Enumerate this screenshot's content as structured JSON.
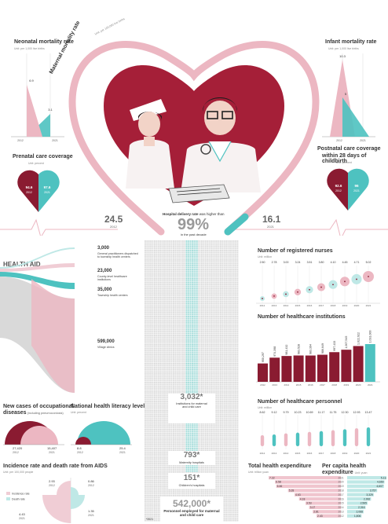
{
  "colors": {
    "maroon": "#8a1b31",
    "pink": "#ecb7c2",
    "teal": "#4ec2c0",
    "light_teal": "#bfe8e6",
    "grey": "#d9d9d9"
  },
  "neonatal": {
    "title": "Neonatal mortality rate",
    "unit": "Unit: per 1,000 live births",
    "v2012": "6.9",
    "v2021": "3.1",
    "x1": "2012",
    "x2": "2021"
  },
  "infant": {
    "title": "Infant mortality rate",
    "unit": "Unit: per 1,000 live births",
    "v2012": "10.3",
    "v2021": "5",
    "x1": "2012",
    "x2": "2021"
  },
  "maternal": {
    "title": "Maternal mortality rate",
    "unit": "Unit: per 100,000 live births",
    "v2012": "24.5",
    "y2012": "2012",
    "v2021": "16.1",
    "y2021": "2021"
  },
  "prenatal": {
    "title": "Prenatal care coverage",
    "unit": "Unit: percent",
    "v2012": "94.6",
    "y2012": "2012",
    "v2021": "97.6",
    "y2021": "2021"
  },
  "postnatal": {
    "title1": "Postnatal care coverage",
    "title2": "within 28 days of childbirth",
    "unit": "Unit: percent",
    "v2012": "92.6",
    "y2012": "2012",
    "v2021": "96",
    "y2021": "2021"
  },
  "hospital_delivery": {
    "text1a": "Hospital delivery rate",
    "text1b": " was higher than",
    "big": "99%",
    "text2": "in the past decade"
  },
  "health_aid": {
    "title": "HEALTH AID",
    "items": [
      {
        "value": "3,000",
        "label": "General practitioners dispatched to township health centers"
      },
      {
        "value": "23,000",
        "label": "County-level healthcare institutions"
      },
      {
        "value": "35,000",
        "label": "Township health centers"
      },
      {
        "value": "599,000",
        "label": "Village clinics"
      }
    ]
  },
  "occupational": {
    "title": "New cases of occupational",
    "title2": "diseases",
    "title2b": " (including pneumoconiosis)",
    "v2012": "27,420",
    "y2012": "2012",
    "v2021": "15,407",
    "y2021": "2021"
  },
  "literacy": {
    "title": "National health literacy level",
    "unit": "Unit: percent",
    "v2012": "8.8",
    "y2012": "2012",
    "v2021": "25.4",
    "y2021": "2021"
  },
  "aids": {
    "title": "Incidence rate and death rate from AIDS",
    "unit": "Unit: per 100,000 people",
    "legend_inc": "Incidence rate",
    "legend_death": "Death rate",
    "inc2012": "2.93",
    "inc2021": "4.43",
    "death2012": "0.86",
    "death2021": "1.35",
    "y2012": "2012",
    "y2021": "2021"
  },
  "center": {
    "inst_value": "3,032*",
    "inst_label": "Institutions for maternal and child care",
    "mat_value": "793*",
    "mat_label": "Maternity hospitals",
    "child_value": "151*",
    "child_label": "Children's hospitals",
    "pers_value": "542,000*",
    "pers_label": "Personnel employed for maternal and child care",
    "footnote": "*2021"
  },
  "chart_data": [
    {
      "type": "scatter",
      "title": "Number of registered nurses",
      "unit": "Unit: million",
      "categories": [
        "2012",
        "2013",
        "2014",
        "2015",
        "2016",
        "2017",
        "2018",
        "2019",
        "2020",
        "2021"
      ],
      "values": [
        2.5,
        2.78,
        3.0,
        3.24,
        3.51,
        3.8,
        4.1,
        4.45,
        4.71,
        5.02
      ],
      "labels": [
        "2.50",
        "2.78",
        "3.00",
        "3.24",
        "3.51",
        "3.80",
        "4.10",
        "4.45",
        "4.71",
        "5.02"
      ]
    },
    {
      "type": "bar",
      "title": "Number of healthcare institutions",
      "categories": [
        "2012",
        "2013",
        "2014",
        "2015",
        "2016",
        "2017",
        "2018",
        "2019",
        "2020",
        "2021"
      ],
      "values": [
        950297,
        974398,
        981432,
        983528,
        983394,
        986649,
        997433,
        1007545,
        1022922,
        1031000
      ],
      "labels": [
        "950,297",
        "974,398",
        "981,432",
        "983,528",
        "983,394",
        "986,649",
        "997,433",
        "1,007,545",
        "1,022,922",
        "1,031,000"
      ]
    },
    {
      "type": "bar",
      "title": "Number of healthcare personnel",
      "unit": "Unit: million",
      "categories": [
        "2012",
        "2013",
        "2014",
        "2015",
        "2016",
        "2017",
        "2018",
        "2019",
        "2020",
        "2021"
      ],
      "values": [
        8.62,
        9.12,
        9.79,
        10.23,
        10.69,
        11.17,
        11.75,
        12.3,
        12.93,
        13.47
      ],
      "labels": [
        "8.62",
        "9.12",
        "9.79",
        "10.23",
        "10.69",
        "11.17",
        "11.75",
        "12.30",
        "12.93",
        "13.47"
      ]
    },
    {
      "type": "bar",
      "title": "Total health expenditure",
      "unit": "Unit: trillion yuan",
      "categories": [
        "2021",
        "2020",
        "2019",
        "2018",
        "2017",
        "2016",
        "2015",
        "2014",
        "2013",
        "2012"
      ],
      "values": [
        7.22,
        6.58,
        6.46,
        5.28,
        4.63,
        4.18,
        3.53,
        3.17,
        2.81,
        2.43
      ],
      "labels": [
        "7.22",
        "6.58",
        "6.46",
        "5.28",
        "4.63",
        "4.18",
        "3.53",
        "3.17",
        "2.81",
        "2.43"
      ]
    },
    {
      "type": "bar",
      "title": "Per capita health",
      "title2": "expenditure",
      "unit": "Unit: yuan",
      "categories": [
        "2021",
        "2020",
        "2019",
        "2018",
        "2017",
        "2016",
        "2015",
        "2014",
        "2013",
        "2012"
      ],
      "values": [
        5112,
        4669,
        4607,
        3757,
        3329,
        2992,
        2565,
        2316,
        2068,
        1806
      ],
      "labels": [
        "5,112",
        "4,669",
        "4,607",
        "3,757",
        "3,329",
        "2,992",
        "2,565",
        "2,316",
        "2,068",
        "1,806"
      ]
    }
  ]
}
